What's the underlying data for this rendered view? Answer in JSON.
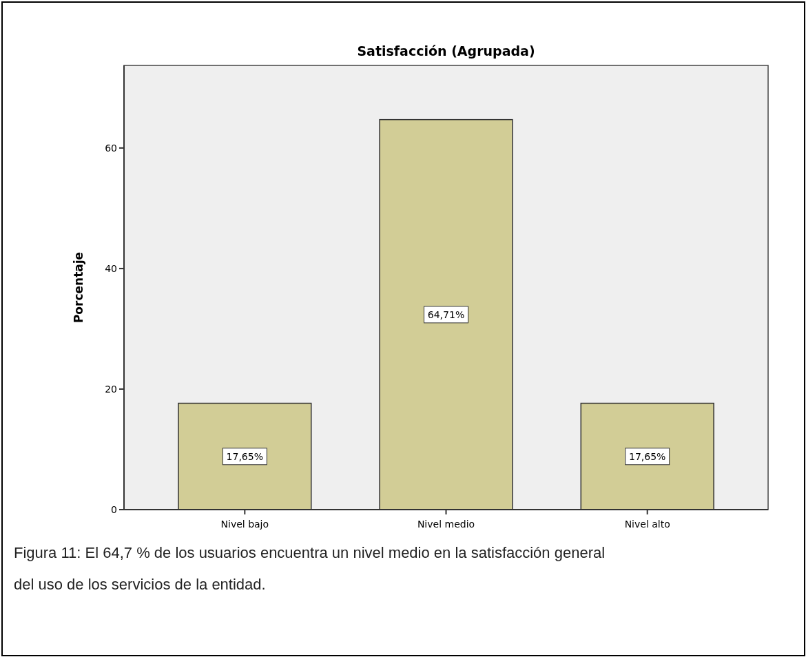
{
  "chart_data": {
    "type": "bar",
    "title": "Satisfacción (Agrupada)",
    "ylabel": "Porcentaje",
    "categories": [
      "Nivel bajo",
      "Nivel medio",
      "Nivel alto"
    ],
    "values": [
      17.65,
      64.71,
      17.65
    ],
    "value_labels": [
      "17,65%",
      "64,71%",
      "17,65%"
    ],
    "color": "#d2cd96",
    "ylim": [
      0,
      73.7
    ],
    "yticks": [
      0,
      20,
      40,
      60
    ],
    "grid": false,
    "annotations": [
      "Figura 11: El 64,7 % de los usuarios encuentra un nivel medio en la satisfacción general del uso de los servicios de la entidad."
    ]
  }
}
